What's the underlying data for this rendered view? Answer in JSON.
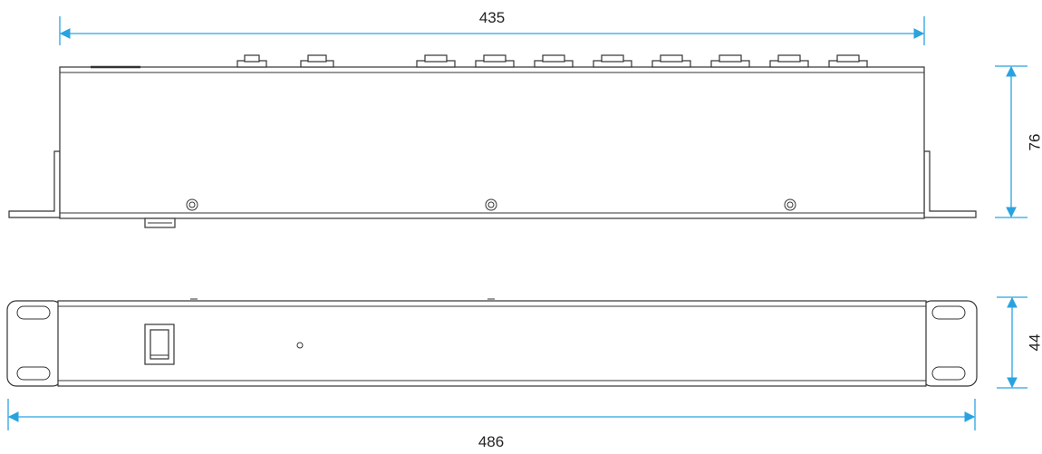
{
  "colors": {
    "dimension": "#29a3e0",
    "outline": "#333333",
    "background": "#ffffff"
  },
  "dimensions": {
    "top_width": "435",
    "top_height": "76",
    "front_height": "44",
    "front_width": "486"
  }
}
